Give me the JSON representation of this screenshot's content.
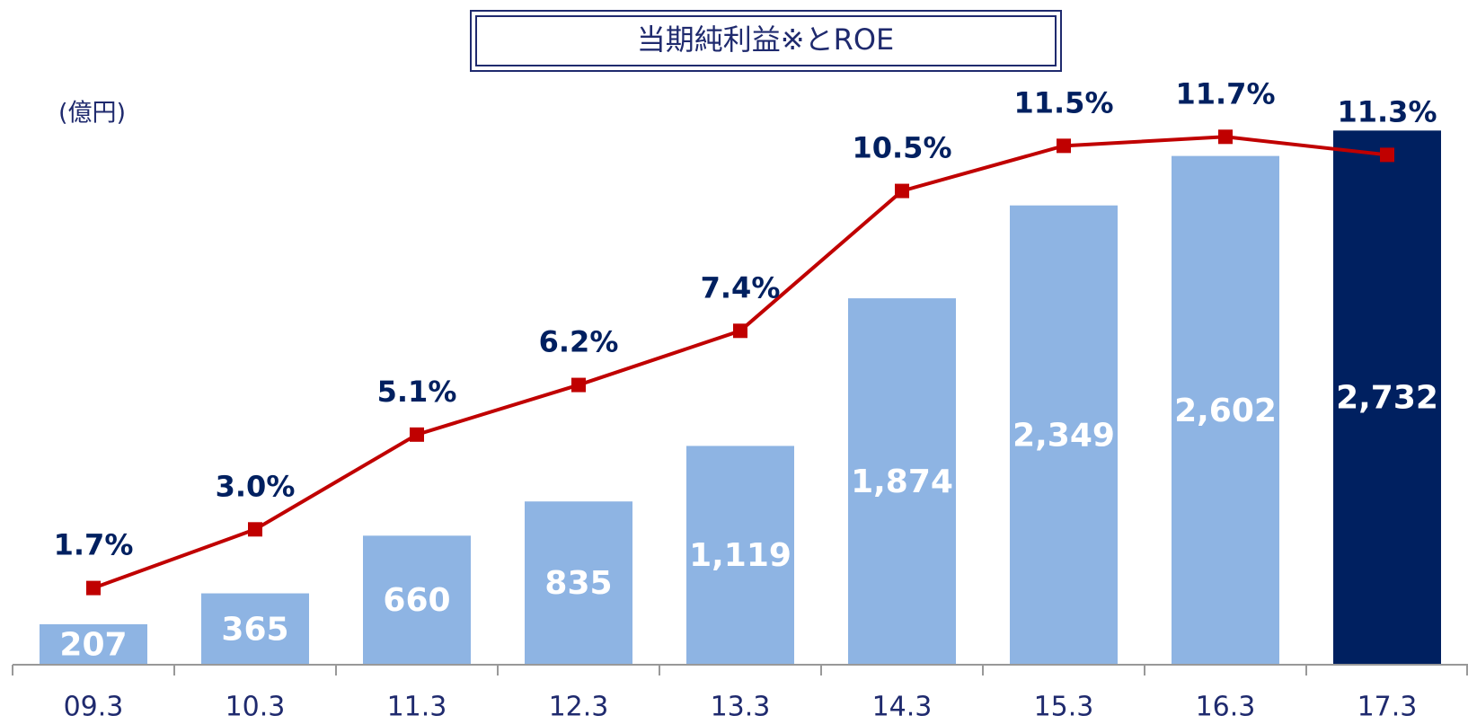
{
  "chart_data": {
    "type": "bar",
    "title": "当期純利益※とROE",
    "y_label": "(億円)",
    "categories": [
      "09.3",
      "10.3",
      "11.3",
      "12.3",
      "13.3",
      "14.3",
      "15.3",
      "16.3",
      "17.3"
    ],
    "series": [
      {
        "type": "bar",
        "colors": [
          "#8eb4e3",
          "#8eb4e3",
          "#8eb4e3",
          "#8eb4e3",
          "#8eb4e3",
          "#8eb4e3",
          "#8eb4e3",
          "#8eb4e3",
          "#002060"
        ],
        "values": [
          207,
          365,
          660,
          835,
          1119,
          1874,
          2349,
          2602,
          2732
        ],
        "value_labels": [
          "207",
          "365",
          "660",
          "835",
          "1,119",
          "1,874",
          "2,349",
          "2,602",
          "2,732"
        ]
      },
      {
        "type": "line",
        "axis": "y2",
        "color": "#c00000",
        "values": [
          1.7,
          3.0,
          5.1,
          6.2,
          7.4,
          10.5,
          11.5,
          11.7,
          11.3
        ],
        "value_labels": [
          "1.7%",
          "3.0%",
          "5.1%",
          "6.2%",
          "7.4%",
          "10.5%",
          "11.5%",
          "11.7%",
          "11.3%"
        ]
      }
    ],
    "ylim": [
      0,
      3000
    ],
    "y2lim": [
      0,
      13
    ]
  }
}
